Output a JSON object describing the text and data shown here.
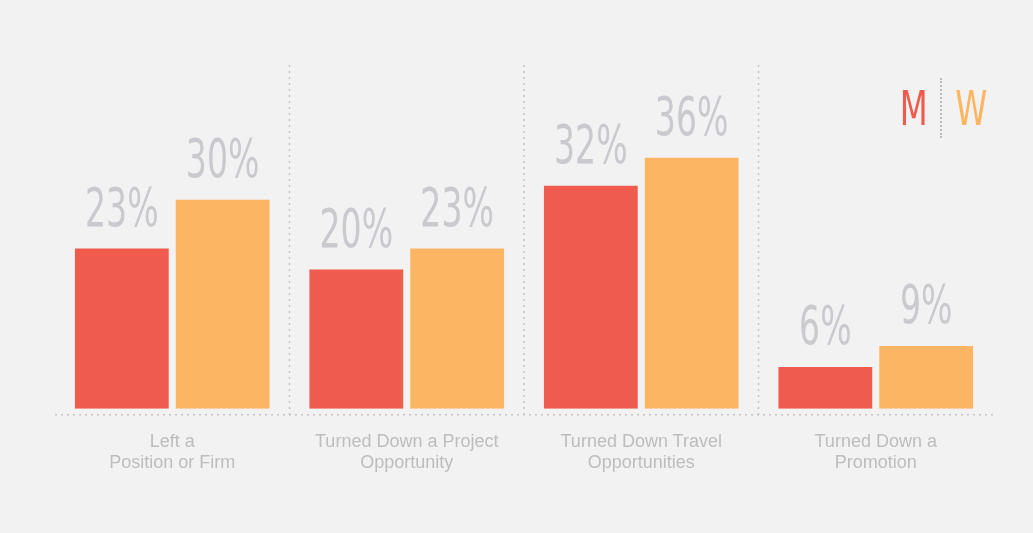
{
  "chart_data": {
    "type": "bar",
    "categories": [
      "Left a\nPosition or Firm",
      "Turned Down a Project\nOpportunity",
      "Turned Down Travel\nOpportunities",
      "Turned Down a\nPromotion"
    ],
    "series": [
      {
        "name": "M",
        "color": "#ef5b4c",
        "values": [
          23,
          20,
          32,
          6
        ],
        "value_labels": [
          "23%",
          "20%",
          "32%",
          "6%"
        ]
      },
      {
        "name": "W",
        "color": "#fbb563",
        "values": [
          30,
          23,
          36,
          9
        ],
        "value_labels": [
          "30%",
          "23%",
          "36%",
          "9%"
        ]
      }
    ],
    "legend": "top right"
  }
}
